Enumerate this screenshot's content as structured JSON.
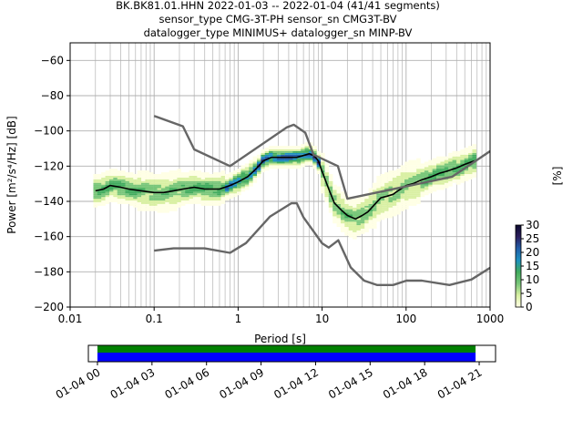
{
  "header": {
    "line1": "BK.BK81.01.HHN   2022-01-03 -- 2022-01-04  (41/41 segments)",
    "line2": "sensor_type CMG-3T-PH sensor_sn CMG3T-BV",
    "line3": "datalogger_type MINIMUS+ datalogger_sn MINP-BV"
  },
  "chart_data": [
    {
      "type": "heatmap",
      "title": "BK.BK81.01.HHN   2022-01-03 -- 2022-01-04  (41/41 segments)",
      "xlabel": "Period [s]",
      "ylabel": "Power [m²/s⁴/Hz] [dB]",
      "x_scale": "log",
      "xlim": [
        0.01,
        1000
      ],
      "ylim": [
        -200,
        -50
      ],
      "grid": true,
      "x_ticks": [
        {
          "value": 0.01,
          "label": "0.01"
        },
        {
          "value": 0.1,
          "label": "0.1"
        },
        {
          "value": 1,
          "label": "1"
        },
        {
          "value": 10,
          "label": "10"
        },
        {
          "value": 100,
          "label": "100"
        },
        {
          "value": 1000,
          "label": "1000"
        }
      ],
      "y_ticks": [
        {
          "value": -60,
          "label": "−60"
        },
        {
          "value": -80,
          "label": "−80"
        },
        {
          "value": -100,
          "label": "−100"
        },
        {
          "value": -120,
          "label": "−120"
        },
        {
          "value": -140,
          "label": "−140"
        },
        {
          "value": -160,
          "label": "−160"
        },
        {
          "value": -180,
          "label": "−180"
        },
        {
          "value": -200,
          "label": "−200"
        }
      ],
      "colorbar": {
        "label": "[%]",
        "min": 0,
        "max": 30,
        "ticks": [
          {
            "value": 0,
            "label": "0"
          },
          {
            "value": 5,
            "label": "5"
          },
          {
            "value": 10,
            "label": "10"
          },
          {
            "value": 15,
            "label": "15"
          },
          {
            "value": 20,
            "label": "20"
          },
          {
            "value": 25,
            "label": "25"
          },
          {
            "value": 30,
            "label": "30"
          }
        ],
        "colors": [
          "#ffffe5",
          "#d9f0a3",
          "#78c679",
          "#41ab5d",
          "#1d91c0",
          "#225ea8",
          "#2c1e5e",
          "#0b0b2e"
        ]
      },
      "series": [
        {
          "role": "mean",
          "color": "#000000",
          "x": [
            0.02,
            0.025,
            0.03,
            0.04,
            0.05,
            0.07,
            0.1,
            0.13,
            0.17,
            0.22,
            0.3,
            0.4,
            0.5,
            0.6,
            0.8,
            1.0,
            1.3,
            1.6,
            2.0,
            2.5,
            3.0,
            4.0,
            5.0,
            6.0,
            7.0,
            8.0,
            9.0,
            10,
            12,
            14,
            17,
            20,
            25,
            30,
            35,
            40,
            50,
            60,
            70,
            80,
            100,
            120,
            150,
            200,
            250,
            300,
            400,
            500,
            650
          ],
          "y": [
            -134,
            -133,
            -131,
            -132,
            -133,
            -134,
            -135,
            -135,
            -134,
            -133,
            -132,
            -133,
            -133,
            -133,
            -131,
            -129,
            -126,
            -122,
            -117,
            -115,
            -115,
            -115,
            -115,
            -114,
            -113,
            -114,
            -117,
            -123,
            -133,
            -141,
            -145,
            -148,
            -150,
            -148,
            -146,
            -143,
            -138,
            -137,
            -136,
            -134,
            -131,
            -130,
            -128,
            -126,
            -124,
            -123,
            -121,
            -119,
            -117
          ]
        },
        {
          "role": "noise-model-high",
          "color": "#666666",
          "x": [
            0.1,
            0.22,
            0.3,
            0.8,
            3.8,
            4.6,
            6.3,
            7.9,
            15.4,
            20,
            354.8,
            1000
          ],
          "y": [
            -91.5,
            -97.4,
            -110.5,
            -120,
            -98,
            -96.5,
            -101,
            -113.5,
            -120,
            -138.5,
            -126,
            -111.5
          ]
        },
        {
          "role": "noise-model-low",
          "color": "#666666",
          "x": [
            0.1,
            0.17,
            0.4,
            0.8,
            1.24,
            2.4,
            4.3,
            5.0,
            6.0,
            10,
            12,
            15.6,
            21.9,
            31.6,
            45,
            70,
            101,
            154,
            328,
            600,
            1000
          ],
          "y": [
            -168,
            -166.7,
            -166.7,
            -169.2,
            -163.7,
            -148.6,
            -141.1,
            -141.1,
            -149,
            -163.8,
            -166.2,
            -162.1,
            -177.5,
            -185,
            -187.5,
            -187.5,
            -185,
            -185,
            -187.5,
            -184.4,
            -177.7
          ]
        }
      ]
    },
    {
      "type": "bar",
      "title": "",
      "xlabel": "",
      "xlim_hours": [
        -0.5,
        21.9
      ],
      "x_ticks": [
        {
          "value": 0,
          "label": "01-04 00"
        },
        {
          "value": 3,
          "label": "01-04 03"
        },
        {
          "value": 6,
          "label": "01-04 06"
        },
        {
          "value": 9,
          "label": "01-04 09"
        },
        {
          "value": 12,
          "label": "01-04 12"
        },
        {
          "value": 15,
          "label": "01-04 15"
        },
        {
          "value": 18,
          "label": "01-04 18"
        },
        {
          "value": 21,
          "label": "01-04 21"
        }
      ],
      "bars": [
        {
          "role": "data-available",
          "color": "#008000",
          "start": 0,
          "end": 20.8
        },
        {
          "role": "psd-segments",
          "color": "#0000ff",
          "start": 0,
          "end": 20.8
        }
      ]
    }
  ]
}
